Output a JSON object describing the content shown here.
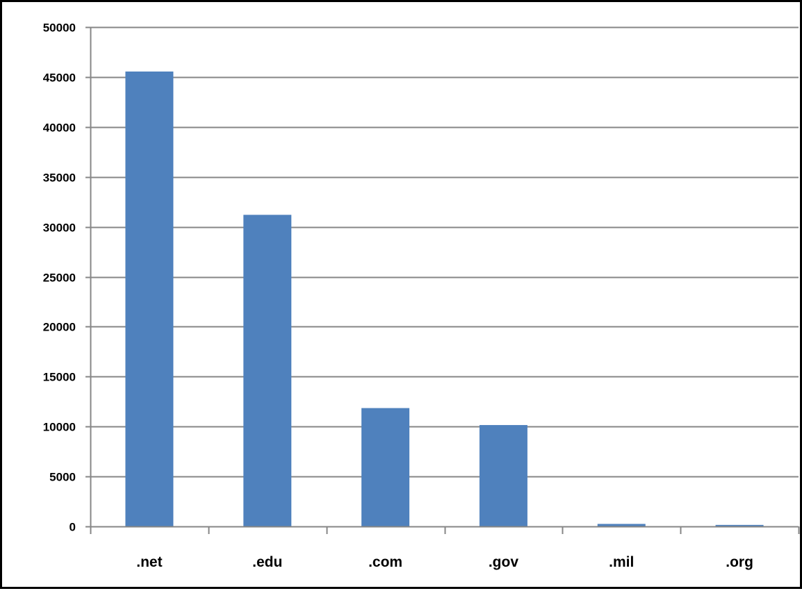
{
  "chart_data": {
    "type": "bar",
    "title": "",
    "xlabel": "",
    "ylabel": "",
    "categories": [
      ".net",
      ".edu",
      ".com",
      ".gov",
      ".mil",
      ".org"
    ],
    "values": [
      45550,
      31200,
      11850,
      10150,
      250,
      150
    ],
    "ylim": [
      0,
      50000
    ],
    "yticks": [
      0,
      5000,
      10000,
      15000,
      20000,
      25000,
      30000,
      35000,
      40000,
      45000,
      50000
    ],
    "grid": true,
    "legend": "none",
    "colors": {
      "bar": "#4f81bd",
      "grid": "#868686",
      "axis": "#868686"
    }
  }
}
